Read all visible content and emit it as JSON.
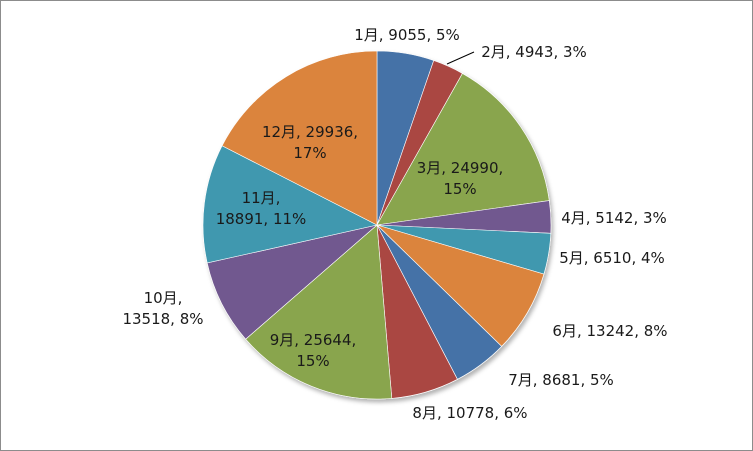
{
  "chart_data": {
    "type": "pie",
    "title": "",
    "categories": [
      "1月",
      "2月",
      "3月",
      "4月",
      "5月",
      "6月",
      "7月",
      "8月",
      "9月",
      "10月",
      "11月",
      "12月"
    ],
    "values": [
      9055,
      4943,
      24990,
      5142,
      6510,
      13242,
      8681,
      10778,
      25644,
      13518,
      18891,
      29936
    ],
    "percent_labels": [
      "5%",
      "3%",
      "15%",
      "3%",
      "4%",
      "8%",
      "5%",
      "6%",
      "15%",
      "8%",
      "11%",
      "17%"
    ],
    "data_labels": [
      [
        "1月, 9055, 5%"
      ],
      [
        "2月, 4943, 3%"
      ],
      [
        "3月, 24990,",
        "15%"
      ],
      [
        "4月, 5142, 3%"
      ],
      [
        "5月, 6510, 4%"
      ],
      [
        "6月, 13242, 8%"
      ],
      [
        "7月, 8681, 5%"
      ],
      [
        "8月, 10778, 6%"
      ],
      [
        "9月, 25644,",
        "15%"
      ],
      [
        "10月,",
        "13518, 8%"
      ],
      [
        "11月,",
        "18891, 11%"
      ],
      [
        "12月, 29936,",
        "17%"
      ]
    ],
    "colors": [
      "#4572A7",
      "#AA4643",
      "#89A54E",
      "#71588F",
      "#4198AF",
      "#DB843D",
      "#4572A7",
      "#AA4643",
      "#89A54E",
      "#71588F",
      "#4198AF",
      "#DB843D"
    ],
    "start_angle_deg": -90,
    "direction": "clockwise",
    "legend": "none"
  }
}
